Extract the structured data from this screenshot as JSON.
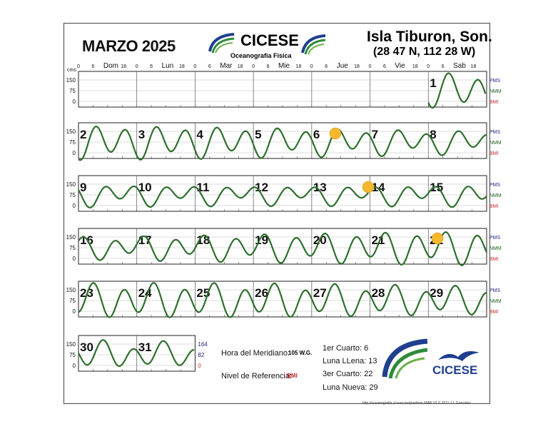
{
  "header": {
    "month": "MARZO 2025",
    "org": "CICESE",
    "org_sub": "Oceanografia Fisica",
    "location": "Isla Tiburon, Son.",
    "coords": "(28 47 N, 112 28 W)"
  },
  "axis": {
    "units": "cms",
    "hour_ticks": [
      "0",
      "6",
      "Dom",
      "18",
      "0",
      "6",
      "Lun",
      "18",
      "0",
      "6",
      "Mar",
      "18",
      "0",
      "6",
      "Mie",
      "18",
      "0",
      "6",
      "Jue",
      "18",
      "0",
      "6",
      "Vie",
      "18",
      "0",
      "6",
      "Sab",
      "18"
    ],
    "y_ticks": [
      "150",
      "75",
      "0"
    ],
    "right_labels": [
      "PMS",
      "NMM",
      "BMI"
    ],
    "last_panel_right": [
      "164",
      "82",
      "0"
    ]
  },
  "chart_data": {
    "type": "line",
    "description_units": "cm",
    "rows": [
      {
        "days": [
          "1"
        ],
        "start_col": 6
      },
      {
        "days": [
          "2",
          "3",
          "4",
          "5",
          "6",
          "7",
          "8"
        ],
        "start_col": 0
      },
      {
        "days": [
          "9",
          "10",
          "11",
          "12",
          "13",
          "14",
          "15"
        ],
        "start_col": 0
      },
      {
        "days": [
          "16",
          "17",
          "18",
          "19",
          "20",
          "21",
          "22"
        ],
        "start_col": 0
      },
      {
        "days": [
          "23",
          "24",
          "25",
          "26",
          "27",
          "28",
          "29"
        ],
        "start_col": 0
      },
      {
        "days": [
          "30",
          "31"
        ],
        "start_col": 0
      }
    ],
    "ylim": [
      -60,
      190
    ]
  },
  "footer": {
    "meridian_label": "Hora del Meridiano:",
    "meridian_value": "105 W.G.",
    "ref_label": "Nivel de Referencia:",
    "ref_value": "BMI",
    "q1": "1er Cuarto:  6",
    "full": "Luna LLena:  13",
    "q3": "3er Cuarto:   22",
    "new": "Luna Nueva:  29",
    "url": "http://oceanografia.cicese.mx/predmar  MAR V1.0 2011 J.I. Gonzalez",
    "logo2": "CICESE"
  },
  "colors": {
    "curve": "#2e6e2e",
    "pms": "#1a237e",
    "nmm": "#1b5e20",
    "bmi": "#c62828",
    "moon": "#f5b82e",
    "blue": "#1f3f8f"
  }
}
